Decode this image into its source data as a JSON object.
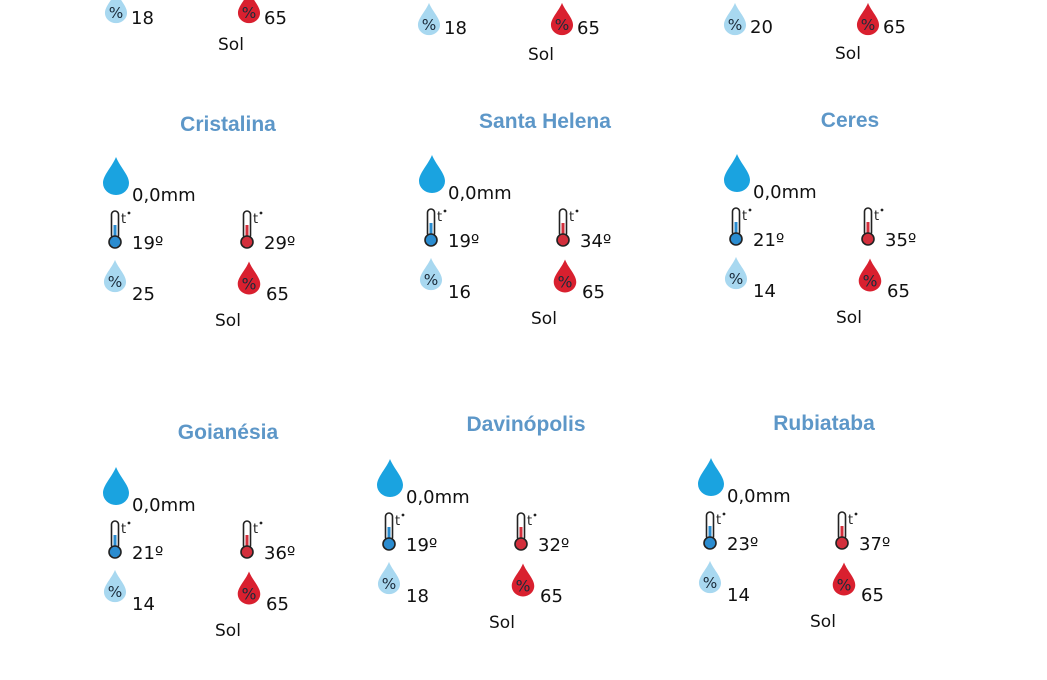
{
  "colors": {
    "title": "#5d97c8",
    "rain_drop": "#1aa3e0",
    "thermo_min": "#2a8cd0",
    "thermo_max": "#d32f3c",
    "humidity_min": "#a8d8f0",
    "humidity_max": "#d9202f"
  },
  "icons": [
    "rain-drop-icon",
    "thermometer-min-icon",
    "thermometer-max-icon",
    "humidity-min-icon",
    "humidity-max-icon"
  ],
  "top_row": [
    {
      "hum_min": "18",
      "hum_max": "65",
      "condition": "Sol"
    },
    {
      "hum_min": "18",
      "hum_max": "65",
      "condition": "Sol"
    },
    {
      "hum_min": "20",
      "hum_max": "65",
      "condition": "Sol"
    }
  ],
  "cities": [
    {
      "name": "Cristalina",
      "rain": "0,0mm",
      "temp_min": "19º",
      "temp_max": "29º",
      "hum_min": "25",
      "hum_max": "65",
      "condition": "Sol"
    },
    {
      "name": "Santa Helena",
      "rain": "0,0mm",
      "temp_min": "19º",
      "temp_max": "34º",
      "hum_min": "16",
      "hum_max": "65",
      "condition": "Sol"
    },
    {
      "name": "Ceres",
      "rain": "0,0mm",
      "temp_min": "21º",
      "temp_max": "35º",
      "hum_min": "14",
      "hum_max": "65",
      "condition": "Sol"
    },
    {
      "name": "Goianésia",
      "rain": "0,0mm",
      "temp_min": "21º",
      "temp_max": "36º",
      "hum_min": "14",
      "hum_max": "65",
      "condition": "Sol"
    },
    {
      "name": "Davinópolis",
      "rain": "0,0mm",
      "temp_min": "19º",
      "temp_max": "32º",
      "hum_min": "18",
      "hum_max": "65",
      "condition": "Sol"
    },
    {
      "name": "Rubiataba",
      "rain": "0,0mm",
      "temp_min": "23º",
      "temp_max": "37º",
      "hum_min": "14",
      "hum_max": "65",
      "condition": "Sol"
    }
  ]
}
